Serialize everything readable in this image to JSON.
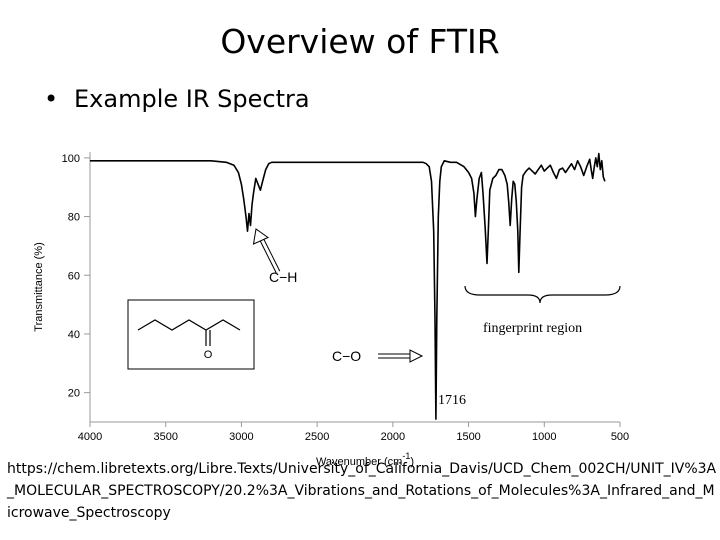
{
  "slide": {
    "title": "Overview of FTIR",
    "bullet": "Example IR Spectra",
    "bullet_symbol": "•",
    "source_url": "https://chem.libretexts.org/Libre.Texts/University_of_California_Davis/UCD_Chem_002CH/UNIT_IV%3A_MOLECULAR_SPECTROSCOPY/20.2%3A_Vibrations_and_Rotations_of_Molecules%3A_Infrared_and_Microwave_Spectroscopy"
  },
  "chart_data": {
    "type": "line",
    "title": "",
    "xlabel": "Wavenumber (cm",
    "xlabel_superscript": "-1",
    "xlabel_suffix": ")",
    "ylabel": "Transmittance (%)",
    "xlim": [
      4000,
      500
    ],
    "ylim": [
      10,
      102
    ],
    "x_reversed": true,
    "x_ticks": [
      4000,
      3500,
      3000,
      2500,
      2000,
      1500,
      1000,
      500
    ],
    "y_ticks": [
      100,
      80,
      60,
      40,
      20
    ],
    "grid": false,
    "color": "#000000",
    "series": [
      {
        "x": [
          4000,
          3800,
          3600,
          3400,
          3200,
          3100,
          3050,
          3020,
          3000,
          2985,
          2970,
          2960,
          2950,
          2940,
          2930,
          2920,
          2905,
          2890,
          2875,
          2860,
          2840,
          2820,
          2800,
          2700,
          2500,
          2300,
          2100,
          1950,
          1850,
          1800,
          1780,
          1760,
          1745,
          1730,
          1722,
          1716,
          1710,
          1700,
          1690,
          1680,
          1660,
          1620,
          1580,
          1530,
          1500,
          1480,
          1465,
          1455,
          1445,
          1430,
          1415,
          1405,
          1390,
          1378,
          1370,
          1360,
          1340,
          1320,
          1300,
          1280,
          1260,
          1245,
          1235,
          1225,
          1215,
          1205,
          1195,
          1185,
          1175,
          1168,
          1160,
          1150,
          1140,
          1120,
          1100,
          1080,
          1060,
          1040,
          1020,
          1000,
          980,
          960,
          940,
          920,
          900,
          880,
          860,
          840,
          820,
          800,
          780,
          760,
          740,
          720,
          700,
          690,
          680,
          670,
          660,
          650,
          640,
          630,
          620,
          610,
          600
        ],
        "y": [
          99,
          99,
          99,
          99,
          99,
          98.5,
          97.5,
          95,
          91,
          86,
          80,
          75,
          81,
          77,
          84,
          88,
          93,
          91,
          89,
          92,
          96,
          98,
          98.5,
          98.5,
          98.5,
          98.5,
          98.5,
          98.5,
          98.5,
          98.5,
          98,
          97,
          92,
          75,
          45,
          11,
          45,
          80,
          92,
          97,
          99,
          98.5,
          98.5,
          97,
          95,
          93,
          88,
          80,
          86,
          93,
          95,
          88,
          76,
          64,
          75,
          89,
          93,
          94,
          96,
          96,
          94,
          91,
          85,
          77,
          86,
          92,
          91,
          85,
          75,
          61,
          75,
          90,
          94,
          95.5,
          96.5,
          95.5,
          94.5,
          96,
          97.5,
          95.5,
          96.5,
          97.5,
          95,
          93,
          96,
          96.5,
          95,
          96.5,
          98,
          96,
          99,
          97,
          94,
          97,
          99.5,
          96,
          93,
          97,
          100,
          97,
          101.5,
          96,
          99,
          93.5,
          92
        ]
      }
    ],
    "annotations": {
      "ch_label": "C−H",
      "co_label": "C−O",
      "peak_label": "1716",
      "fingerprint_label": "fingerprint region"
    },
    "inset": {
      "description": "skeletal structure of a ketone",
      "atom_label": "O"
    }
  }
}
